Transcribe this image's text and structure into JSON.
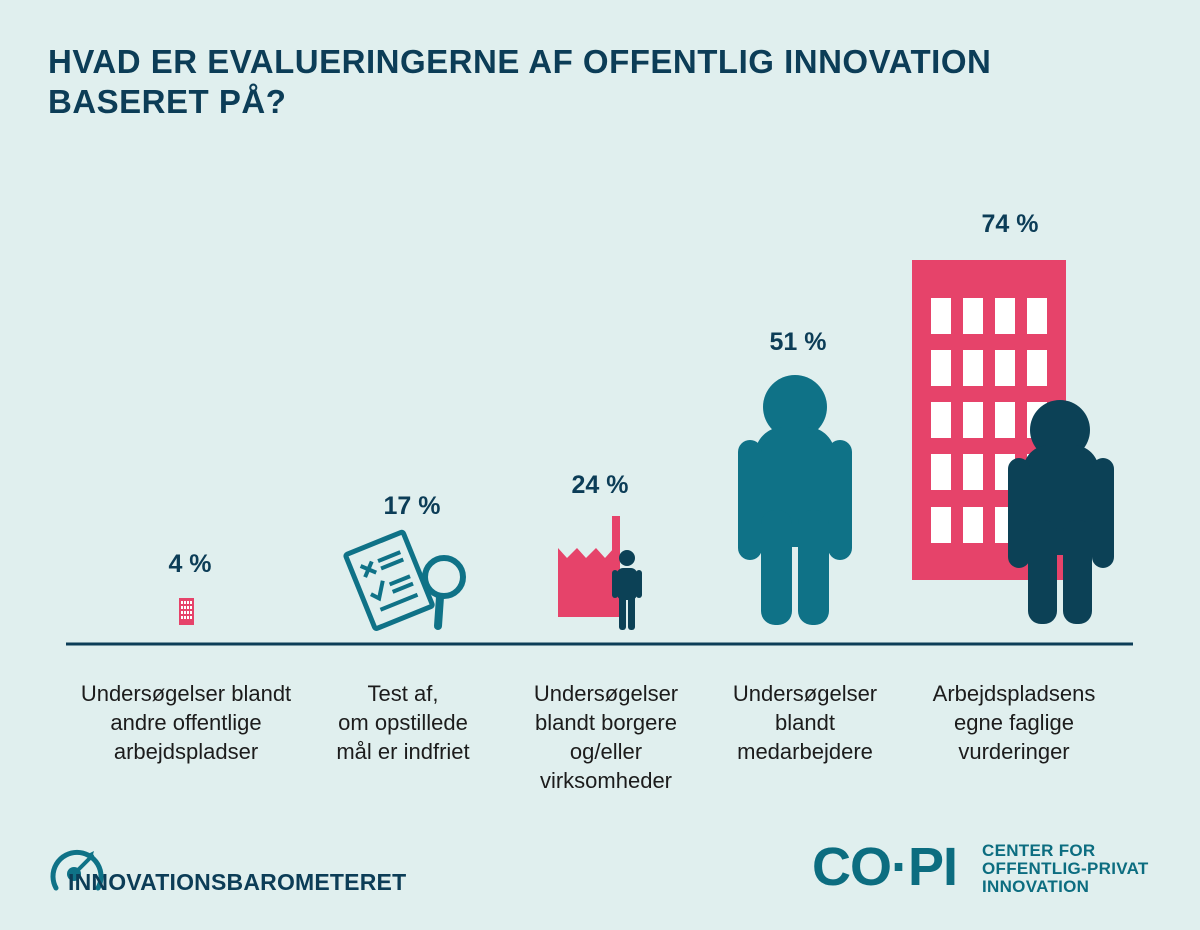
{
  "header": {
    "title_line1": "HVAD ER EVALUERINGERNE AF OFFENTLIG INNOVATION",
    "title_line2": "BASERET PÅ?"
  },
  "chart_data": {
    "type": "bar",
    "title": "HVAD ER EVALUERINGERNE AF OFFENTLIG INNOVATION BASERET PÅ?",
    "categories": [
      "Undersøgelser blandt andre offentlige arbejdspladser",
      "Test af, om opstillede mål er indfriet",
      "Undersøgelser blandt borgere og/eller virksomheder",
      "Undersøgelser blandt medarbejdere",
      "Arbejdspladsens egne faglige vurderinger"
    ],
    "values": [
      4,
      17,
      24,
      51,
      74
    ],
    "value_labels": [
      "4 %",
      "17 %",
      "24 %",
      "51 %",
      "74 %"
    ],
    "unit": "%",
    "category_lines": [
      [
        "Undersøgelser blandt",
        "andre offentlige",
        "arbejdspladser"
      ],
      [
        "Test af,",
        "om opstillede",
        "mål er indfriet"
      ],
      [
        "Undersøgelser",
        "blandt borgere",
        "og/eller",
        "virksomheder"
      ],
      [
        "Undersøgelser",
        "blandt",
        "medarbejdere"
      ],
      [
        "Arbejdspladsens",
        "egne faglige",
        "vurderinger"
      ]
    ],
    "icons": [
      "building-icon",
      "test-document-icon",
      "factory-person-icon",
      "person-icon",
      "building-person-icon"
    ],
    "ylim": [
      0,
      100
    ]
  },
  "footer": {
    "left_brand": "INNOVATIONSBAROMETERET",
    "right_logo": "CO·PI",
    "right_sub_line1": "CENTER FOR",
    "right_sub_line2": "OFFENTLIG-PRIVAT",
    "right_sub_line3": "INNOVATION"
  },
  "colors": {
    "background": "#e0efee",
    "title": "#0c3d57",
    "pink": "#e6436a",
    "teal": "#0f7287",
    "navy": "#0c4156",
    "baseline": "#0c3d57"
  }
}
